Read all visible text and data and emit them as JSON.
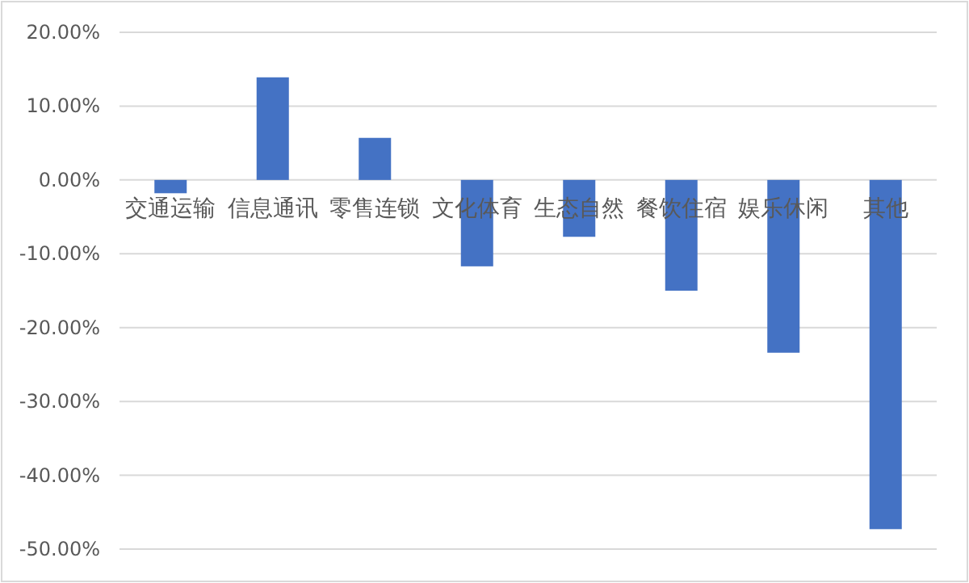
{
  "chart_data": {
    "type": "bar",
    "categories": [
      "交通运输",
      "信息通讯",
      "零售连锁",
      "文化体育",
      "生态自然",
      "餐饮住宿",
      "娱乐休闲",
      "其他"
    ],
    "values": [
      -1.8,
      13.9,
      5.7,
      -11.7,
      -7.7,
      -15.0,
      -23.4,
      -47.3
    ],
    "color": "#4472c4",
    "ylim": [
      -50,
      20
    ],
    "yticks": [
      {
        "value": 20,
        "label": "20.00%"
      },
      {
        "value": 10,
        "label": "10.00%"
      },
      {
        "value": 0,
        "label": "0.00%"
      },
      {
        "value": -10,
        "label": "-10.00%"
      },
      {
        "value": -20,
        "label": "-20.00%"
      },
      {
        "value": -30,
        "label": "-30.00%"
      },
      {
        "value": -40,
        "label": "-40.00%"
      },
      {
        "value": -50,
        "label": "-50.00%"
      }
    ],
    "grid": "y"
  }
}
